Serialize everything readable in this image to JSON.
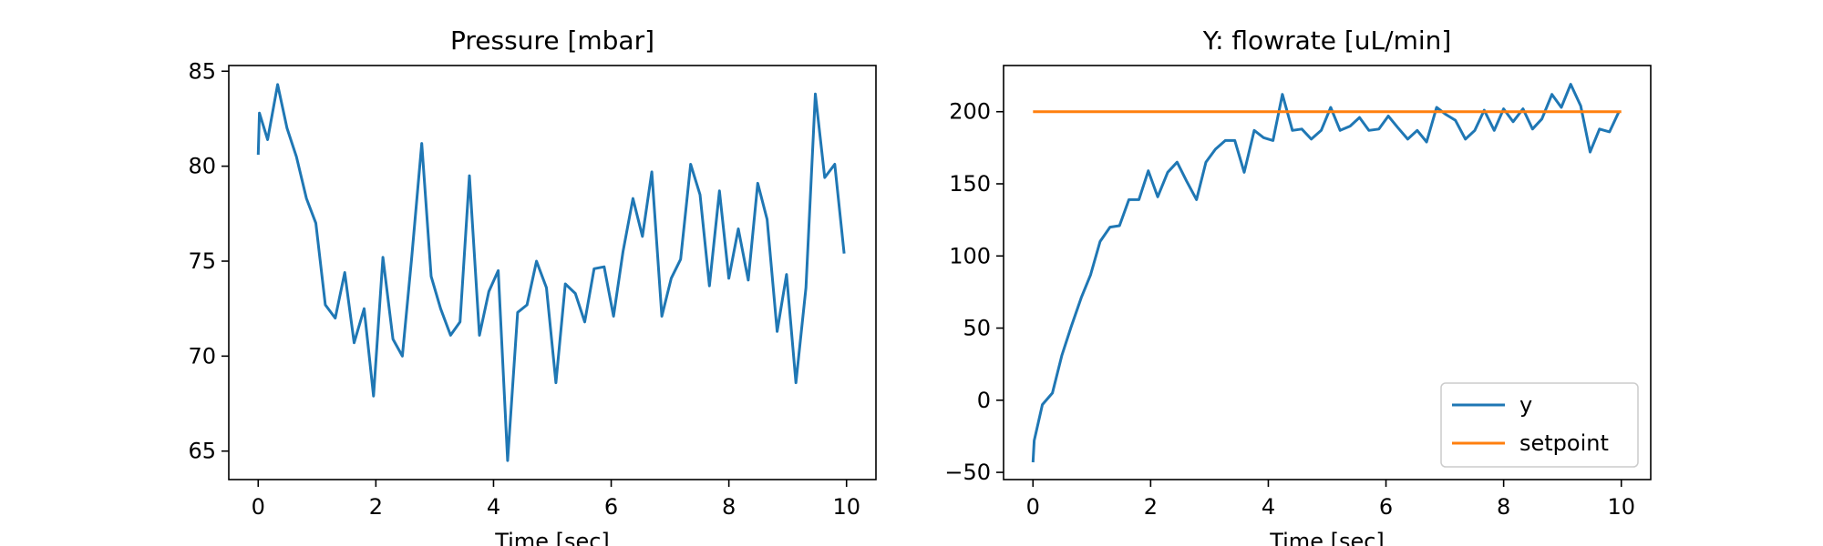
{
  "chart_data": [
    {
      "type": "line",
      "title": "Pressure [mbar]",
      "xlabel": "Time [sec]",
      "ylabel": "",
      "xlim": [
        -0.5,
        10.5
      ],
      "ylim": [
        63.5,
        85.3
      ],
      "xticks": [
        0,
        2,
        4,
        6,
        8,
        10
      ],
      "yticks": [
        65,
        70,
        75,
        80,
        85
      ],
      "grid": false,
      "series": [
        {
          "color": "#1f77b4",
          "x": [
            0.0,
            0.02,
            0.16,
            0.33,
            0.49,
            0.65,
            0.82,
            0.98,
            1.14,
            1.31,
            1.47,
            1.63,
            1.8,
            1.96,
            2.12,
            2.29,
            2.45,
            2.61,
            2.78,
            2.94,
            3.1,
            3.27,
            3.43,
            3.59,
            3.76,
            3.92,
            4.08,
            4.24,
            4.41,
            4.57,
            4.73,
            4.9,
            5.06,
            5.22,
            5.39,
            5.55,
            5.71,
            5.88,
            6.04,
            6.2,
            6.37,
            6.53,
            6.69,
            6.86,
            7.02,
            7.18,
            7.35,
            7.51,
            7.67,
            7.84,
            8.0,
            8.16,
            8.33,
            8.49,
            8.65,
            8.82,
            8.98,
            9.14,
            9.31,
            9.47,
            9.63,
            9.8,
            9.96
          ],
          "y": [
            80.6,
            82.8,
            81.4,
            84.3,
            82.0,
            80.5,
            78.3,
            77.0,
            72.7,
            72.0,
            74.4,
            70.7,
            72.5,
            67.9,
            75.2,
            70.9,
            70.0,
            75.2,
            81.2,
            74.2,
            72.5,
            71.1,
            71.8,
            79.5,
            71.1,
            73.4,
            74.5,
            64.5,
            72.3,
            72.7,
            75.0,
            73.6,
            68.6,
            73.8,
            73.3,
            71.8,
            74.6,
            74.7,
            72.1,
            75.5,
            78.3,
            76.3,
            79.7,
            72.1,
            74.1,
            75.1,
            80.1,
            78.5,
            73.7,
            78.7,
            74.1,
            76.7,
            74.0,
            79.1,
            77.2,
            71.3,
            74.3,
            68.6,
            73.6,
            83.8,
            79.4,
            80.1,
            75.4
          ]
        }
      ]
    },
    {
      "type": "line",
      "title": "Y: flowrate [uL/min]",
      "xlabel": "Time [sec]",
      "ylabel": "",
      "xlim": [
        -0.5,
        10.5
      ],
      "ylim": [
        -55,
        232
      ],
      "xticks": [
        0,
        2,
        4,
        6,
        8,
        10
      ],
      "yticks": [
        -50,
        0,
        50,
        100,
        150,
        200
      ],
      "grid": false,
      "legend": "lower-right",
      "series": [
        {
          "name": "y",
          "color": "#1f77b4",
          "x": [
            0.0,
            0.02,
            0.16,
            0.33,
            0.49,
            0.65,
            0.82,
            0.98,
            1.14,
            1.31,
            1.47,
            1.63,
            1.8,
            1.96,
            2.12,
            2.29,
            2.45,
            2.61,
            2.78,
            2.94,
            3.1,
            3.27,
            3.43,
            3.59,
            3.76,
            3.92,
            4.08,
            4.24,
            4.41,
            4.57,
            4.73,
            4.9,
            5.06,
            5.22,
            5.39,
            5.55,
            5.71,
            5.88,
            6.04,
            6.2,
            6.37,
            6.53,
            6.69,
            6.86,
            7.02,
            7.18,
            7.35,
            7.51,
            7.67,
            7.84,
            8.0,
            8.16,
            8.33,
            8.49,
            8.65,
            8.82,
            8.98,
            9.14,
            9.31,
            9.47,
            9.63,
            9.8,
            9.96
          ],
          "y": [
            -43,
            -28,
            -3,
            5,
            31,
            51,
            71,
            87,
            110,
            120,
            121,
            139,
            139,
            159,
            141,
            158,
            165,
            152,
            139,
            165,
            174,
            180,
            180,
            158,
            187,
            182,
            180,
            212,
            187,
            188,
            181,
            187,
            203,
            187,
            190,
            196,
            187,
            188,
            197,
            189,
            181,
            187,
            179,
            203,
            198,
            194,
            181,
            187,
            201,
            187,
            202,
            193,
            202,
            188,
            195,
            212,
            203,
            219,
            204,
            172,
            188,
            186,
            200
          ]
        },
        {
          "name": "setpoint",
          "color": "#ff7f0e",
          "x": [
            0,
            10
          ],
          "y": [
            200,
            200
          ]
        }
      ]
    }
  ]
}
